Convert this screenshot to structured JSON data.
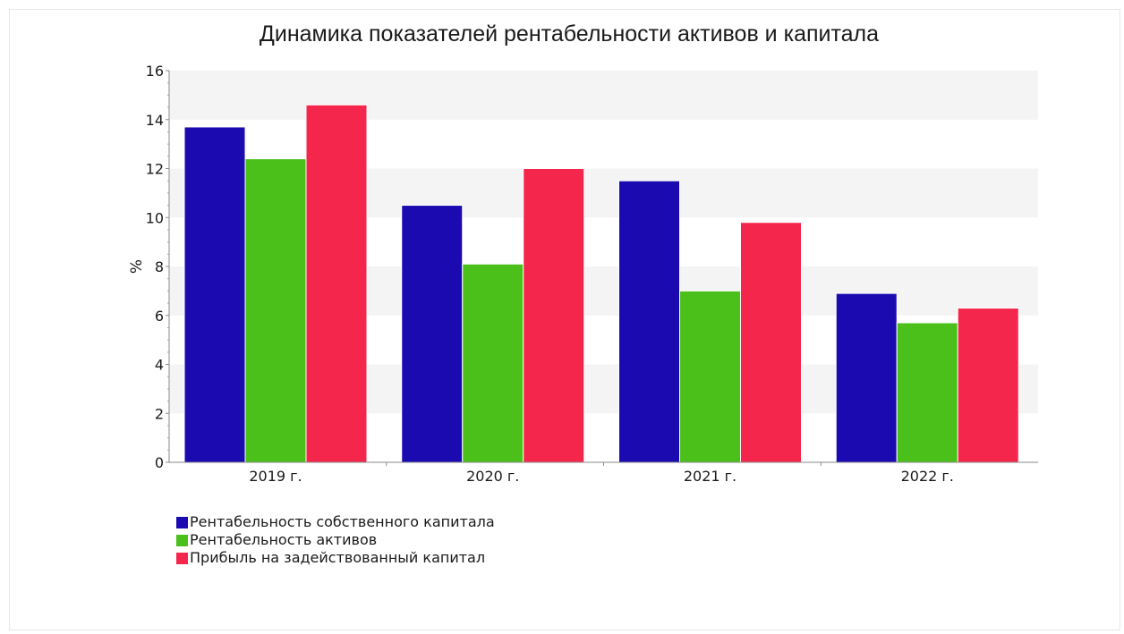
{
  "chart_data": {
    "type": "bar",
    "title": "Динамика показателей рентабельности активов и капитала",
    "xlabel": "",
    "ylabel": "%",
    "ylim": [
      0,
      16
    ],
    "yticks": [
      0,
      2,
      4,
      6,
      8,
      10,
      12,
      14,
      16
    ],
    "categories": [
      "2019 г.",
      "2020 г.",
      "2021 г.",
      "2022 г."
    ],
    "series": [
      {
        "name": "Рентабельность собственного капитала",
        "color": "#1a0ab0",
        "values": [
          13.7,
          10.5,
          11.5,
          6.9
        ]
      },
      {
        "name": "Рентабельность активов",
        "color": "#4cc01a",
        "values": [
          12.4,
          8.1,
          7.0,
          5.7
        ]
      },
      {
        "name": "Прибыль на задействованный капитал",
        "color": "#f5264b",
        "values": [
          14.6,
          12.0,
          9.8,
          6.3
        ]
      }
    ],
    "grid": "alternating horizontal bands",
    "legend_position": "bottom-left"
  }
}
